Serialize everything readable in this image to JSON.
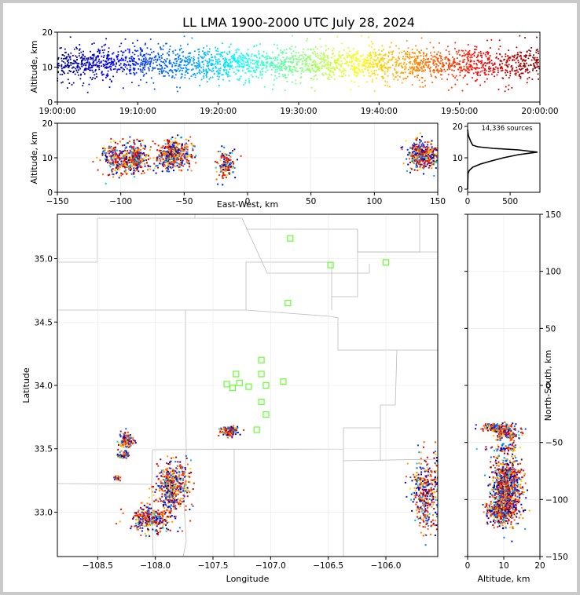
{
  "chart_data": {
    "type": "scatter",
    "title": "LL LMA 1900-2000 UTC July 28, 2024",
    "source_count_label": "14,336 sources",
    "colors": {
      "station": "#66ff33",
      "county": "#bbbbbb",
      "frame": "#c9c9c9"
    },
    "panels": {
      "time_alt": {
        "ylabel": "Altitude, km",
        "xticks": [
          "19:00:00",
          "19:10:00",
          "19:20:00",
          "19:30:00",
          "19:40:00",
          "19:50:00",
          "20:00:00"
        ],
        "xlim_min": [
          0,
          60
        ],
        "ylim": [
          0,
          20
        ],
        "yticks": [
          0,
          10,
          20
        ]
      },
      "ew_alt": {
        "xlabel": "East-West, km",
        "ylabel": "Altitude, km",
        "xlim": [
          -150,
          150
        ],
        "xticks": [
          -150,
          -100,
          -50,
          0,
          50,
          100,
          150
        ],
        "ylim": [
          0,
          20
        ],
        "yticks": [
          0,
          10,
          20
        ]
      },
      "histogram": {
        "xlim": [
          0,
          850
        ],
        "xticks": [
          0,
          500
        ],
        "ylim": [
          -1,
          21
        ],
        "yticks": [
          0,
          10,
          20
        ],
        "profile": [
          [
            0,
            0
          ],
          [
            5,
            5
          ],
          [
            20,
            6
          ],
          [
            60,
            7
          ],
          [
            150,
            8
          ],
          [
            280,
            9
          ],
          [
            420,
            10
          ],
          [
            600,
            11
          ],
          [
            820,
            11.8
          ],
          [
            600,
            12.5
          ],
          [
            300,
            13
          ],
          [
            120,
            13.5
          ],
          [
            60,
            14
          ],
          [
            40,
            15
          ],
          [
            25,
            16
          ],
          [
            10,
            17
          ],
          [
            5,
            18
          ],
          [
            0,
            19
          ]
        ]
      },
      "map": {
        "xlabel": "Longitude",
        "ylabel": "Latitude",
        "xlim": [
          -108.85,
          -105.55
        ],
        "ylim": [
          32.65,
          35.35
        ],
        "xticks": [
          -108.5,
          -108.0,
          -107.5,
          -107.0,
          -106.5,
          -106.0
        ],
        "xtick_labels": [
          "−108.5",
          "−108.0",
          "−107.5",
          "−107.0",
          "−106.5",
          "−106.0"
        ],
        "yticks": [
          33.0,
          33.5,
          34.0,
          34.5,
          35.0
        ],
        "ytick_labels": [
          "33.0",
          "33.5",
          "34.0",
          "34.5",
          "35.0"
        ]
      },
      "ns_alt": {
        "xlabel": "Altitude, km",
        "ylabel": "North-South, km",
        "xlim": [
          0,
          20
        ],
        "xticks": [
          0,
          10,
          20
        ],
        "ylim": [
          -150,
          150
        ],
        "yticks": [
          -150,
          -100,
          -50,
          0,
          50,
          100,
          150
        ],
        "ytick_labels": [
          "−150",
          "−100",
          "−50",
          "0",
          "50",
          "100",
          "150"
        ]
      }
    },
    "stations": [
      [
        -106.83,
        35.16
      ],
      [
        -106.48,
        34.95
      ],
      [
        -106.0,
        34.97
      ],
      [
        -106.85,
        34.65
      ],
      [
        -107.08,
        34.2
      ],
      [
        -107.3,
        34.09
      ],
      [
        -107.08,
        34.09
      ],
      [
        -107.38,
        34.01
      ],
      [
        -107.27,
        34.02
      ],
      [
        -107.33,
        33.98
      ],
      [
        -107.19,
        33.99
      ],
      [
        -107.04,
        34.0
      ],
      [
        -106.89,
        34.03
      ],
      [
        -107.08,
        33.87
      ],
      [
        -107.04,
        33.77
      ],
      [
        -107.12,
        33.65
      ]
    ],
    "clusters": [
      {
        "lon": -107.85,
        "lat": 33.2,
        "dlon": 0.07,
        "dlat": 0.1,
        "n": 500,
        "alt": 11,
        "ew": -58,
        "ns": -90
      },
      {
        "lon": -108.05,
        "lat": 32.95,
        "dlon": 0.09,
        "dlat": 0.05,
        "n": 320,
        "alt": 9,
        "ew": -95,
        "ns": -110
      },
      {
        "lon": -108.25,
        "lat": 33.57,
        "dlon": 0.03,
        "dlat": 0.03,
        "n": 120,
        "alt": 11,
        "ew": -88,
        "ns": -42
      },
      {
        "lon": -108.28,
        "lat": 33.45,
        "dlon": 0.03,
        "dlat": 0.02,
        "n": 60,
        "alt": 10,
        "ew": -110,
        "ns": -55
      },
      {
        "lon": -108.33,
        "lat": 33.27,
        "dlon": 0.02,
        "dlat": 0.01,
        "n": 25,
        "alt": 12,
        "ew": -105,
        "ns": -75
      },
      {
        "lon": -107.36,
        "lat": 33.64,
        "dlon": 0.04,
        "dlat": 0.02,
        "n": 150,
        "alt": 8,
        "ew": -17,
        "ns": -37
      },
      {
        "lon": -105.65,
        "lat": 33.15,
        "dlon": 0.07,
        "dlat": 0.14,
        "n": 400,
        "alt": 11,
        "ew": 138,
        "ns": -88
      }
    ]
  }
}
